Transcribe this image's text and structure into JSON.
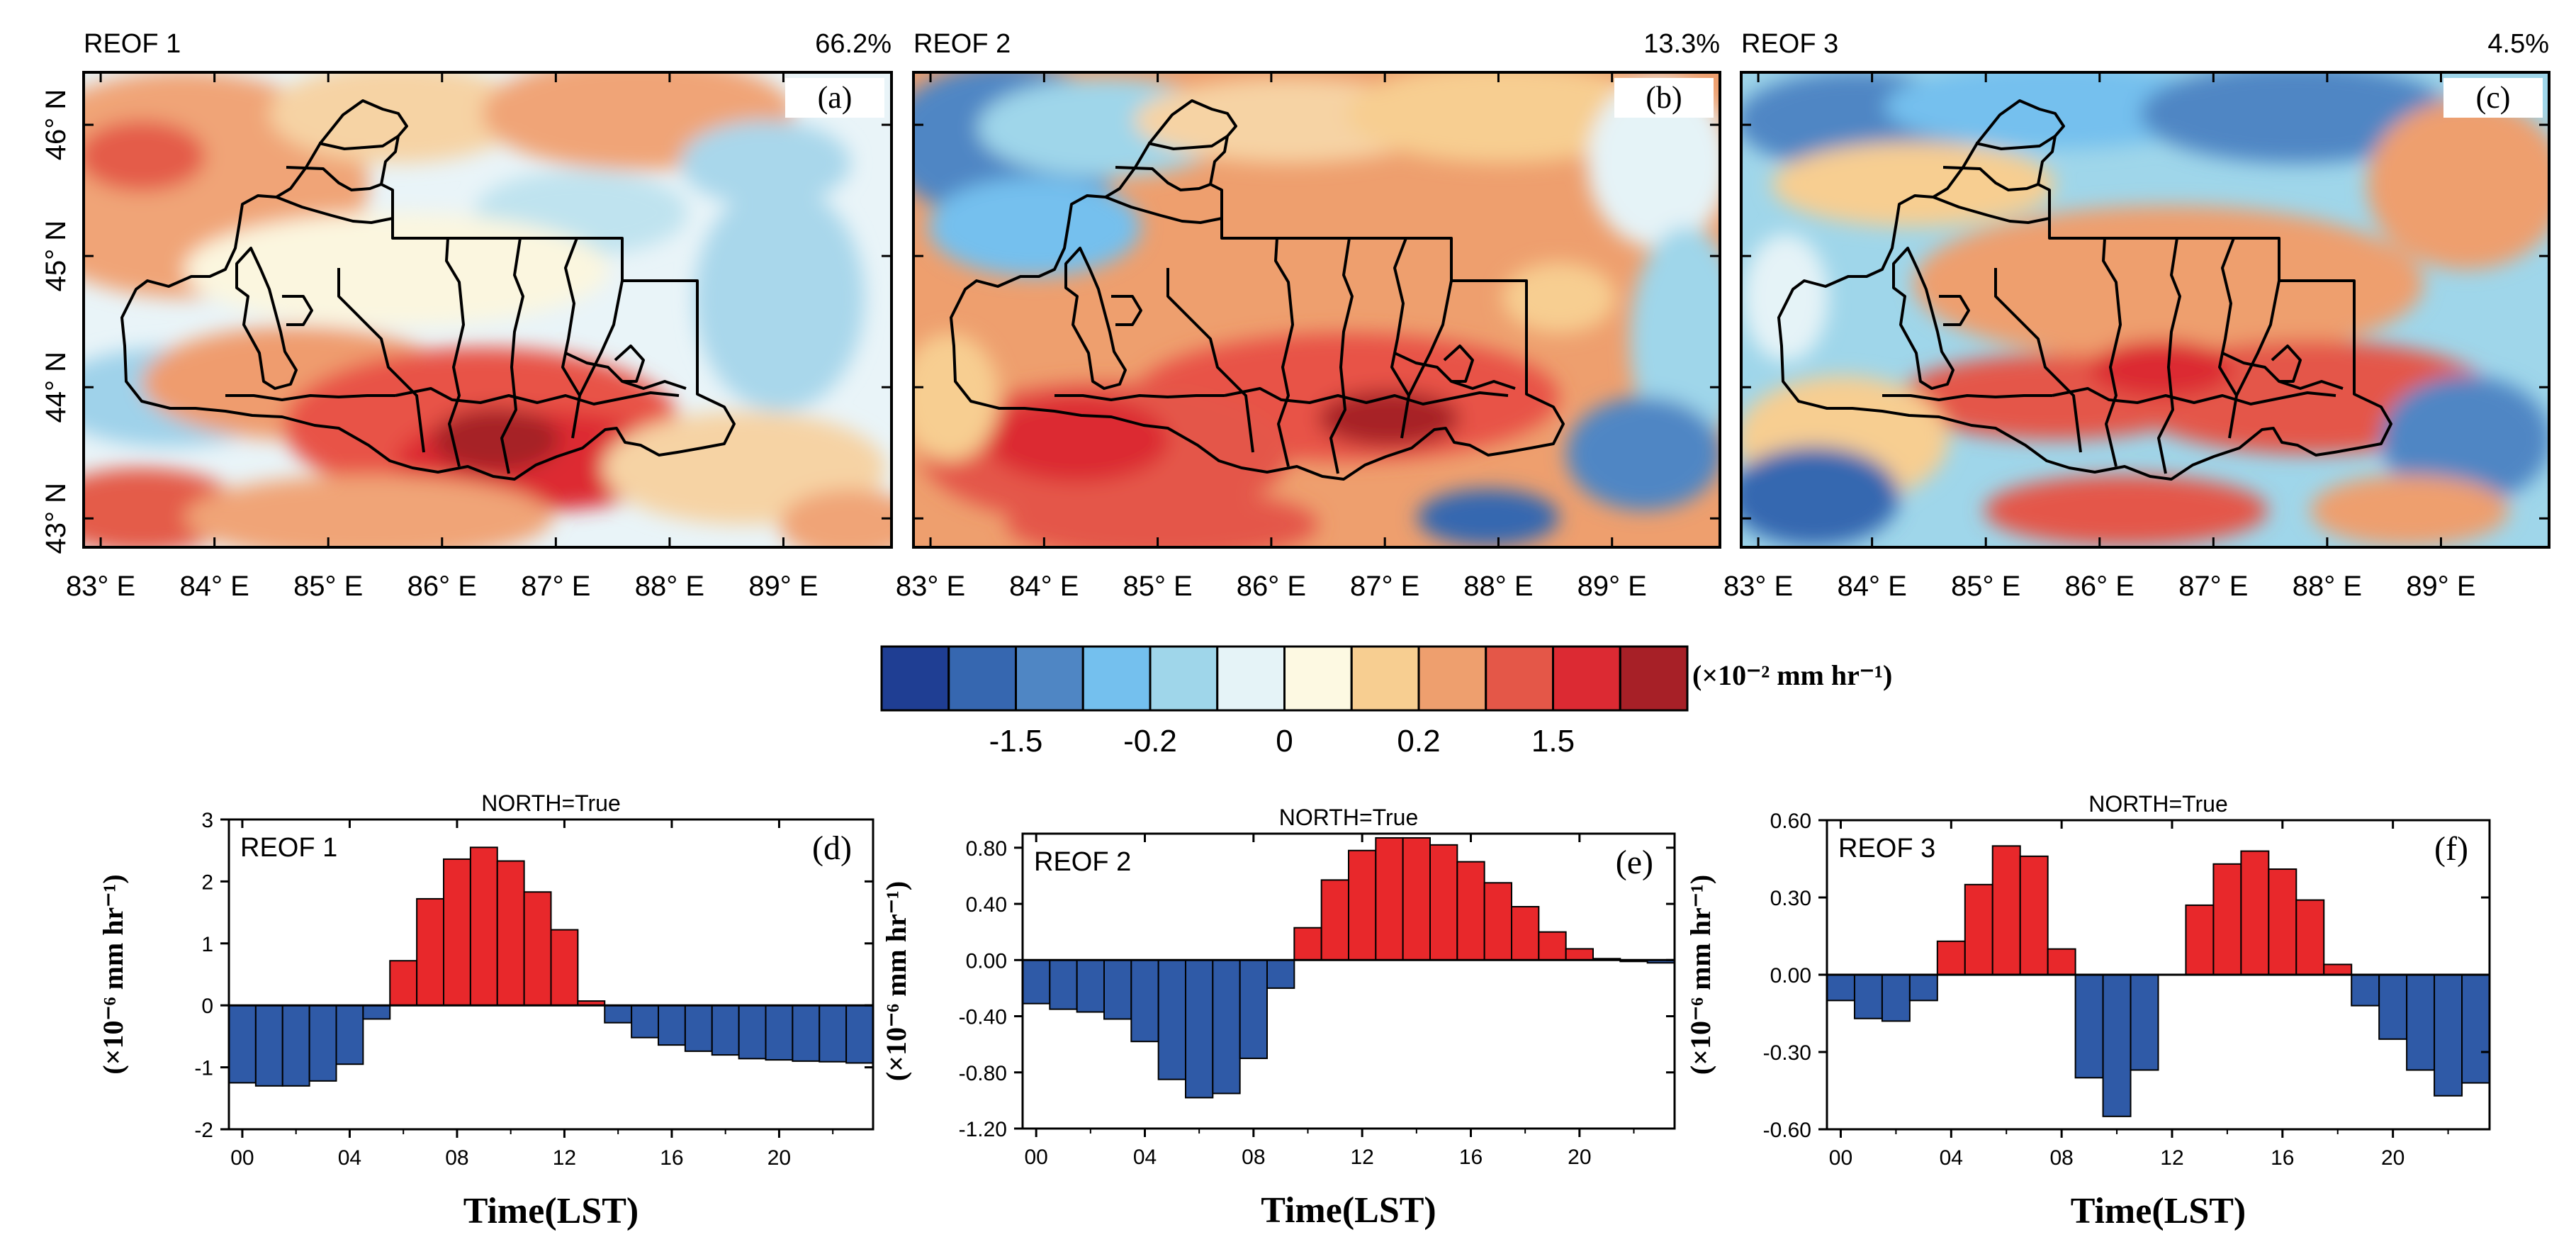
{
  "figure": {
    "colors": {
      "positive": "#e8282b",
      "negative": "#2f5aa7",
      "frame": "#000000"
    },
    "colorbar": {
      "unit": "(×10⁻² mm hr⁻¹)",
      "tick_labels": [
        "-1.5",
        "-0.2",
        "0",
        "0.2",
        "1.5"
      ],
      "colors": [
        "#1f3e93",
        "#3667b0",
        "#4f86c4",
        "#74c0ee",
        "#9fd6ea",
        "#e5f3f7",
        "#fdf9e2",
        "#f7ce91",
        "#ee9f6e",
        "#e45748",
        "#dc2a33",
        "#a72027"
      ]
    },
    "map_axes": {
      "x_tick_labels": [
        "83° E",
        "84° E",
        "85° E",
        "86° E",
        "87° E",
        "88° E",
        "89° E"
      ],
      "y_tick_labels": [
        "43° N",
        "44° N",
        "45° N",
        "46° N"
      ]
    },
    "maps": [
      {
        "title": "REOF 1",
        "variance": "66.2%",
        "panel_label": "(a)"
      },
      {
        "title": "REOF 2",
        "variance": "13.3%",
        "panel_label": "(b)"
      },
      {
        "title": "REOF 3",
        "variance": "4.5%",
        "panel_label": "(c)"
      }
    ]
  },
  "chart_data": [
    {
      "type": "bar",
      "panel_label": "(d)",
      "title": "NORTH=True",
      "legend": "REOF 1",
      "xlabel": "Time(LST)",
      "ylabel": "(×10⁻⁶ mm hr⁻¹)",
      "x": [
        0,
        1,
        2,
        3,
        4,
        5,
        6,
        7,
        8,
        9,
        10,
        11,
        12,
        13,
        14,
        15,
        16,
        17,
        18,
        19,
        20,
        21,
        22,
        23
      ],
      "x_tick_labels": [
        "00",
        "04",
        "08",
        "12",
        "16",
        "20"
      ],
      "values": [
        -1.25,
        -1.3,
        -1.3,
        -1.22,
        -0.95,
        -0.22,
        0.72,
        1.72,
        2.36,
        2.55,
        2.33,
        1.83,
        1.22,
        0.07,
        -0.28,
        -0.52,
        -0.64,
        -0.74,
        -0.8,
        -0.86,
        -0.88,
        -0.9,
        -0.91,
        -0.93
      ],
      "ylim": [
        -2,
        3
      ],
      "y_tick_labels": [
        "3",
        "2",
        "1",
        "0",
        "-1",
        "-2"
      ]
    },
    {
      "type": "bar",
      "panel_label": "(e)",
      "title": "NORTH=True",
      "legend": "REOF 2",
      "xlabel": "Time(LST)",
      "ylabel": "(×10⁻⁶ mm hr⁻¹)",
      "x": [
        0,
        1,
        2,
        3,
        4,
        5,
        6,
        7,
        8,
        9,
        10,
        11,
        12,
        13,
        14,
        15,
        16,
        17,
        18,
        19,
        20,
        21,
        22,
        23
      ],
      "x_tick_labels": [
        "00",
        "04",
        "08",
        "12",
        "16",
        "20"
      ],
      "values": [
        -0.31,
        -0.35,
        -0.37,
        -0.42,
        -0.58,
        -0.85,
        -0.98,
        -0.95,
        -0.7,
        -0.2,
        0.23,
        0.57,
        0.78,
        0.87,
        0.87,
        0.82,
        0.7,
        0.55,
        0.38,
        0.2,
        0.08,
        0.01,
        -0.01,
        -0.02
      ],
      "ylim": [
        -1.2,
        0.9
      ],
      "y_tick_labels": [
        "0.80",
        "0.40",
        "0.00",
        "-0.40",
        "-0.80",
        "-1.20"
      ]
    },
    {
      "type": "bar",
      "panel_label": "(f)",
      "title": "NORTH=True",
      "legend": "REOF 3",
      "xlabel": "Time(LST)",
      "ylabel": "(×10⁻⁶ mm hr⁻¹)",
      "x": [
        0,
        1,
        2,
        3,
        4,
        5,
        6,
        7,
        8,
        9,
        10,
        11,
        12,
        13,
        14,
        15,
        16,
        17,
        18,
        19,
        20,
        21,
        22,
        23
      ],
      "x_tick_labels": [
        "00",
        "04",
        "08",
        "12",
        "16",
        "20"
      ],
      "values": [
        -0.1,
        -0.17,
        -0.18,
        -0.1,
        0.13,
        0.35,
        0.5,
        0.46,
        0.1,
        -0.4,
        -0.55,
        -0.37,
        0.0,
        0.27,
        0.43,
        0.48,
        0.41,
        0.29,
        0.04,
        -0.12,
        -0.25,
        -0.37,
        -0.47,
        -0.42
      ],
      "ylim": [
        -0.6,
        0.6
      ],
      "y_tick_labels": [
        "0.60",
        "0.30",
        "0.00",
        "-0.30",
        "-0.60"
      ]
    }
  ]
}
